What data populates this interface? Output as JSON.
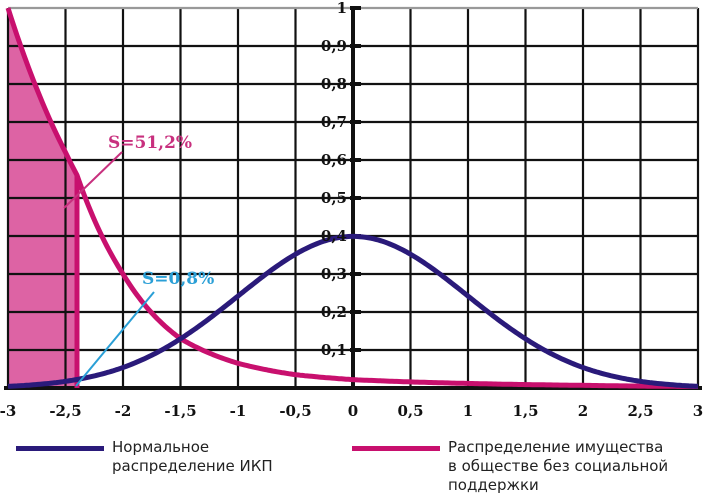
{
  "chart_data": {
    "type": "line",
    "title": "",
    "xlabel": "",
    "ylabel": "",
    "xlim": [
      -3,
      3
    ],
    "ylim": [
      0,
      1
    ],
    "grid": true,
    "legend_position": "bottom",
    "x_ticks": [
      "-3",
      "-2,5",
      "-2",
      "-1,5",
      "-1",
      "-0,5",
      "0",
      "0,5",
      "1",
      "1,5",
      "2",
      "2,5",
      "3"
    ],
    "y_ticks": [
      "0,1",
      "0,2",
      "0,3",
      "0,4",
      "0,5",
      "0,6",
      "0,7",
      "0,8",
      "0,9",
      "1"
    ],
    "series": [
      {
        "name": "Нормальное распределение ИКП",
        "color": "#2a1a7a",
        "x": [
          -3,
          -2.5,
          -2.4,
          -2,
          -1.5,
          -1,
          -0.5,
          0,
          0.5,
          1,
          1.5,
          2,
          2.5,
          3
        ],
        "values": [
          0.004,
          0.018,
          0.022,
          0.054,
          0.13,
          0.242,
          0.352,
          0.399,
          0.352,
          0.242,
          0.13,
          0.054,
          0.018,
          0.004
        ]
      },
      {
        "name": "Распределение имущества в обществе без социальной поддержки",
        "color": "#c8106e",
        "x": [
          -3,
          -2.5,
          -2.4,
          -2,
          -1.5,
          -1,
          -0.5,
          0,
          0.5,
          1,
          1.5,
          2,
          2.5,
          3
        ],
        "values": [
          1.0,
          0.62,
          0.56,
          0.3,
          0.13,
          0.065,
          0.035,
          0.022,
          0.016,
          0.012,
          0.009,
          0.007,
          0.005,
          0.004
        ]
      }
    ],
    "annotations": [
      {
        "text": "S=51,2%",
        "color": "#c8307e",
        "target": "shaded area under pink curve from -3 to -2,4"
      },
      {
        "text": "S=0,8%",
        "color": "#2a9fd6",
        "target": "area under blue curve from -3 to -2,4"
      }
    ],
    "shaded_region": {
      "x_from": -3,
      "x_to": -2.4,
      "color": "#d9529a"
    }
  },
  "legend": {
    "items": [
      {
        "label": "Нормальное\nраспределение ИКП",
        "color": "#2a1a7a"
      },
      {
        "label": "Распределение имущества\nв обществе без социальной\nподдержки",
        "color": "#c8106e"
      }
    ]
  }
}
